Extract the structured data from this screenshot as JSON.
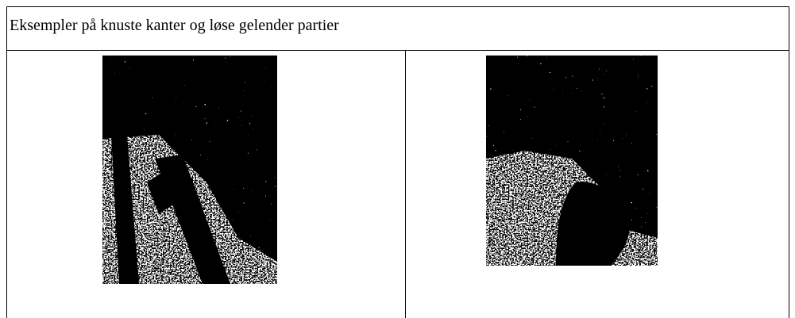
{
  "table": {
    "title": "Eksempler på knuste kanter og løse gelender partier"
  }
}
